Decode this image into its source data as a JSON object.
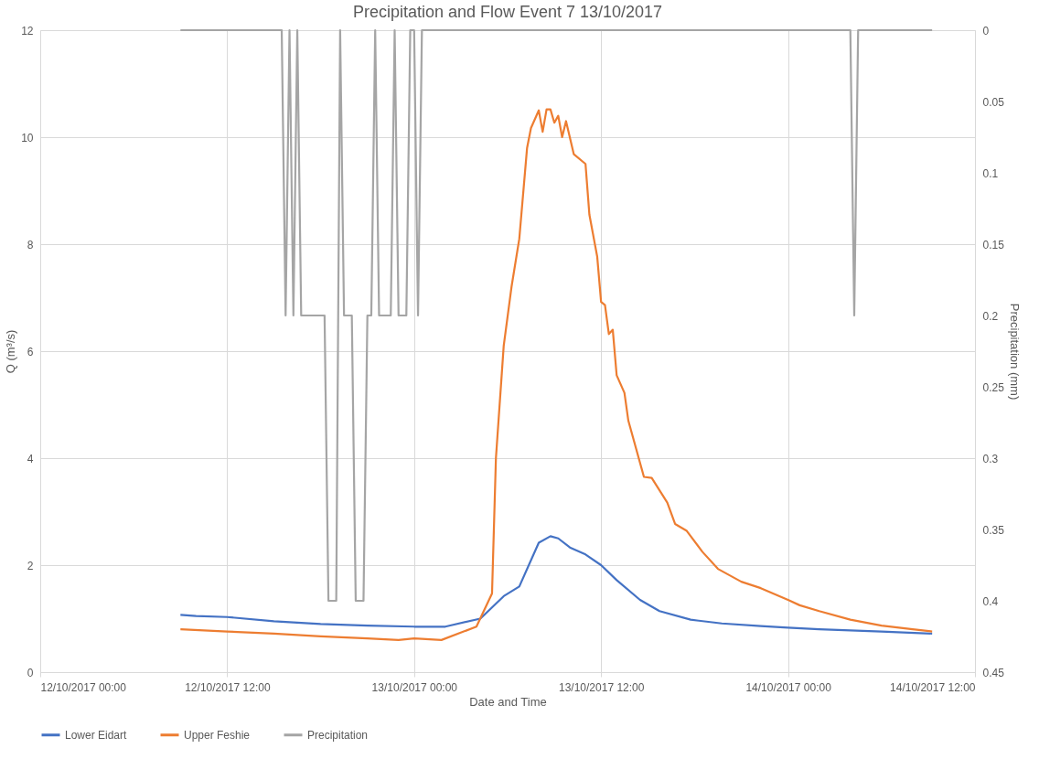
{
  "chart_data": {
    "type": "line",
    "title": "Precipitation and Flow Event 7 13/10/2017",
    "xlabel": "Date and Time",
    "ylabel": "Q (m³/s)",
    "y2label": "Precipitation (mm)",
    "xlim": [
      "2017-10-12T00:00",
      "2017-10-14T12:00"
    ],
    "xticks": [
      {
        "value": "2017-10-12T00:00",
        "label": "12/10/2017 00:00"
      },
      {
        "value": "2017-10-12T12:00",
        "label": "12/10/2017 12:00"
      },
      {
        "value": "2017-10-13T00:00",
        "label": "13/10/2017 00:00"
      },
      {
        "value": "2017-10-13T12:00",
        "label": "13/10/2017 12:00"
      },
      {
        "value": "2017-10-14T00:00",
        "label": "14/10/2017 00:00"
      },
      {
        "value": "2017-10-14T12:00",
        "label": "14/10/2017 12:00"
      }
    ],
    "ylim": [
      0,
      12
    ],
    "yticks": [
      0,
      2,
      4,
      6,
      8,
      10,
      12
    ],
    "y2lim": [
      0.45,
      0
    ],
    "y2ticks": [
      0,
      0.05,
      0.1,
      0.15,
      0.2,
      0.25,
      0.3,
      0.35,
      0.4,
      0.45
    ],
    "grid": true,
    "legend": "bottom",
    "marker": "none",
    "line_style": "solid",
    "series": [
      {
        "name": "Lower Eidart",
        "color": "#4472c4",
        "x": [
          "2017-10-12T09:00",
          "2017-10-12T10:00",
          "2017-10-12T12:00",
          "2017-10-12T15:00",
          "2017-10-12T18:00",
          "2017-10-12T21:00",
          "2017-10-13T00:00",
          "2017-10-13T02:00",
          "2017-10-13T04:15",
          "2017-10-13T05:45",
          "2017-10-13T06:45",
          "2017-10-13T08:00",
          "2017-10-13T08:45",
          "2017-10-13T09:15",
          "2017-10-13T10:00",
          "2017-10-13T11:00",
          "2017-10-13T12:00",
          "2017-10-13T13:00",
          "2017-10-13T14:30",
          "2017-10-13T15:45",
          "2017-10-13T17:45",
          "2017-10-13T19:45",
          "2017-10-13T22:15",
          "2017-10-14T00:00",
          "2017-10-14T02:00",
          "2017-10-14T06:00",
          "2017-10-14T09:15"
        ],
        "values": [
          1.07,
          1.05,
          1.03,
          0.95,
          0.9,
          0.87,
          0.85,
          0.85,
          1.0,
          1.42,
          1.6,
          2.42,
          2.54,
          2.5,
          2.33,
          2.2,
          2.0,
          1.72,
          1.35,
          1.14,
          0.98,
          0.91,
          0.86,
          0.83,
          0.8,
          0.76,
          0.72
        ]
      },
      {
        "name": "Upper Feshie",
        "color": "#ed7d31",
        "x": [
          "2017-10-12T09:00",
          "2017-10-12T12:00",
          "2017-10-12T15:00",
          "2017-10-12T18:00",
          "2017-10-12T21:00",
          "2017-10-12T23:00",
          "2017-10-13T00:00",
          "2017-10-13T01:45",
          "2017-10-13T04:00",
          "2017-10-13T05:00",
          "2017-10-13T05:15",
          "2017-10-13T05:45",
          "2017-10-13T06:15",
          "2017-10-13T06:45",
          "2017-10-13T07:15",
          "2017-10-13T07:30",
          "2017-10-13T08:00",
          "2017-10-13T08:15",
          "2017-10-13T08:30",
          "2017-10-13T08:45",
          "2017-10-13T09:00",
          "2017-10-13T09:15",
          "2017-10-13T09:30",
          "2017-10-13T09:45",
          "2017-10-13T10:15",
          "2017-10-13T11:00",
          "2017-10-13T11:15",
          "2017-10-13T11:45",
          "2017-10-13T12:00",
          "2017-10-13T12:15",
          "2017-10-13T12:30",
          "2017-10-13T12:45",
          "2017-10-13T13:00",
          "2017-10-13T13:30",
          "2017-10-13T13:45",
          "2017-10-13T14:45",
          "2017-10-13T15:15",
          "2017-10-13T16:15",
          "2017-10-13T16:45",
          "2017-10-13T17:30",
          "2017-10-13T18:30",
          "2017-10-13T19:30",
          "2017-10-13T21:00",
          "2017-10-13T22:15",
          "2017-10-14T00:00",
          "2017-10-14T00:45",
          "2017-10-14T02:00",
          "2017-10-14T04:00",
          "2017-10-14T06:00",
          "2017-10-14T08:00",
          "2017-10-14T09:15"
        ],
        "values": [
          0.8,
          0.76,
          0.72,
          0.67,
          0.63,
          0.6,
          0.63,
          0.6,
          0.85,
          1.47,
          4.0,
          6.1,
          7.2,
          8.1,
          9.8,
          10.17,
          10.5,
          10.1,
          10.52,
          10.52,
          10.27,
          10.4,
          10.0,
          10.3,
          9.68,
          9.5,
          8.55,
          7.77,
          6.92,
          6.86,
          6.32,
          6.4,
          5.55,
          5.22,
          4.7,
          3.65,
          3.63,
          3.17,
          2.77,
          2.64,
          2.25,
          1.93,
          1.69,
          1.57,
          1.35,
          1.25,
          1.14,
          0.98,
          0.87,
          0.8,
          0.76
        ]
      },
      {
        "name": "Precipitation",
        "color": "#a5a5a5",
        "axis": "y2",
        "x": [
          "2017-10-12T09:00",
          "2017-10-12T15:30",
          "2017-10-12T15:45",
          "2017-10-12T16:00",
          "2017-10-12T16:15",
          "2017-10-12T16:30",
          "2017-10-12T16:45",
          "2017-10-12T18:15",
          "2017-10-12T18:30",
          "2017-10-12T19:00",
          "2017-10-12T19:15",
          "2017-10-12T19:30",
          "2017-10-12T20:00",
          "2017-10-12T20:15",
          "2017-10-12T20:45",
          "2017-10-12T21:00",
          "2017-10-12T21:15",
          "2017-10-12T21:30",
          "2017-10-12T21:45",
          "2017-10-12T22:30",
          "2017-10-12T22:45",
          "2017-10-12T23:00",
          "2017-10-12T23:30",
          "2017-10-12T23:45",
          "2017-10-13T00:00",
          "2017-10-13T00:15",
          "2017-10-13T00:30",
          "2017-10-14T04:00",
          "2017-10-14T04:15",
          "2017-10-14T04:30",
          "2017-10-14T09:15"
        ],
        "values": [
          0,
          0,
          0.2,
          0,
          0.2,
          0,
          0.2,
          0.2,
          0.4,
          0.4,
          0,
          0.2,
          0.2,
          0.4,
          0.4,
          0.2,
          0.2,
          0,
          0.2,
          0.2,
          0,
          0.2,
          0.2,
          0,
          0,
          0.2,
          0,
          0,
          0.2,
          0,
          0
        ]
      }
    ]
  }
}
